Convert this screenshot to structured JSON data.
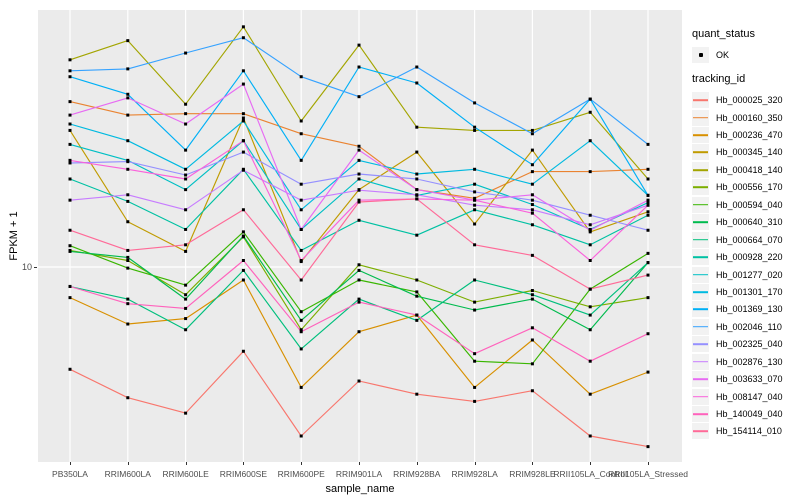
{
  "chart": {
    "y_tick_label": "10",
    "x_axis_title": "sample_name",
    "y_axis_title": "FPKM + 1"
  },
  "legend": {
    "quant_status_title": "quant_status",
    "quant_status_items": [
      {
        "label": "OK"
      }
    ],
    "tracking_id_title": "tracking_id"
  },
  "chart_data": {
    "type": "line",
    "title": "",
    "xlabel": "sample_name",
    "ylabel": "FPKM + 1",
    "y_scale": "log10",
    "y_ticks": [
      10
    ],
    "ylim_approx": [
      2,
      100
    ],
    "grid": "vertical-major-per-category-plus-y10",
    "panel_bg": "#EBEBEB",
    "grid_color": "#FFFFFF",
    "point_color": "#000000",
    "legend_position": "right",
    "categories": [
      "PB350LA",
      "RRIM600LA",
      "RRIM600LE",
      "RRIM600SE",
      "RRIM600PE",
      "RRIM901LA",
      "RRIM928BA",
      "RRIM928LA",
      "RRIM928LE",
      "RRII105LA_Control",
      "RRII105LA_Stressed"
    ],
    "quant_status": "OK",
    "series": [
      {
        "name": "Hb_000025_320",
        "color": "#F8766D",
        "values": [
          4.0,
          3.1,
          2.7,
          4.7,
          2.2,
          3.6,
          3.2,
          3.0,
          3.3,
          2.2,
          2.0
        ]
      },
      {
        "name": "Hb_000160_350",
        "color": "#EA8331",
        "values": [
          44,
          39,
          39.5,
          39.5,
          33,
          29.5,
          20,
          18.5,
          23.5,
          23.5,
          24
        ]
      },
      {
        "name": "Hb_000236_470",
        "color": "#D89000",
        "values": [
          7.6,
          6.0,
          6.3,
          8.9,
          3.4,
          5.6,
          6.5,
          3.4,
          5.2,
          3.2,
          3.9
        ]
      },
      {
        "name": "Hb_000345_140",
        "color": "#C09B00",
        "values": [
          34,
          15,
          11.5,
          38,
          10.5,
          20,
          28,
          14.7,
          28.5,
          13.7,
          16.4
        ]
      },
      {
        "name": "Hb_000418_140",
        "color": "#A3A500",
        "values": [
          64,
          76,
          43,
          86,
          37,
          73,
          35,
          34,
          34,
          40,
          22
        ]
      },
      {
        "name": "Hb_000556_170",
        "color": "#7CAE00",
        "values": [
          11.6,
          10.6,
          7.8,
          13.1,
          5.7,
          10.2,
          8.9,
          7.3,
          8.1,
          7.0,
          7.6
        ]
      },
      {
        "name": "Hb_000594_040",
        "color": "#39B600",
        "values": [
          12.1,
          9.9,
          8.5,
          13.7,
          6.7,
          8.9,
          8.0,
          4.3,
          4.2,
          8.2,
          11.3
        ]
      },
      {
        "name": "Hb_000640_310",
        "color": "#00BB4E",
        "values": [
          11.5,
          10.9,
          7.5,
          13.2,
          6.2,
          9.7,
          7.7,
          6.8,
          7.5,
          5.7,
          10.4
        ]
      },
      {
        "name": "Hb_000664_070",
        "color": "#00BF7D",
        "values": [
          8.4,
          7.5,
          5.7,
          9.7,
          4.8,
          7.5,
          6.2,
          8.9,
          7.8,
          6.5,
          10.4
        ]
      },
      {
        "name": "Hb_000928_220",
        "color": "#00C1A3",
        "values": [
          22,
          18,
          14,
          24,
          11.6,
          15.2,
          13.3,
          16.7,
          14.6,
          12.2,
          15.9
        ]
      },
      {
        "name": "Hb_001277_020",
        "color": "#00BFC4",
        "values": [
          30,
          26,
          20,
          31,
          14,
          22,
          19,
          21,
          17.5,
          14,
          17.8
        ]
      },
      {
        "name": "Hb_001301_170",
        "color": "#00BAE0",
        "values": [
          36,
          31,
          24,
          37,
          16.7,
          26,
          23,
          24,
          21,
          31,
          19
        ]
      },
      {
        "name": "Hb_001369_130",
        "color": "#00B0F6",
        "values": [
          55,
          47,
          28.5,
          58,
          26,
          60,
          52,
          35,
          25,
          45,
          19
        ]
      },
      {
        "name": "Hb_002046_110",
        "color": "#35A2FF",
        "values": [
          58,
          59,
          68,
          78,
          55,
          46,
          60,
          43.5,
          33,
          45,
          30
        ]
      },
      {
        "name": "Hb_002325_040",
        "color": "#9590FF",
        "values": [
          25.4,
          25.7,
          22.8,
          28,
          21,
          23,
          22,
          19.6,
          18.2,
          15.9,
          13.9
        ]
      },
      {
        "name": "Hb_002876_130",
        "color": "#C77CFF",
        "values": [
          18.2,
          19.1,
          16.7,
          23.8,
          18.2,
          19.9,
          19.1,
          17.4,
          16.7,
          14.6,
          17.4
        ]
      },
      {
        "name": "Hb_003633_070",
        "color": "#E76BF3",
        "values": [
          39,
          45.5,
          36,
          51.5,
          14,
          28.5,
          20,
          18.2,
          19.1,
          13.9,
          18.2
        ]
      },
      {
        "name": "Hb_008147_040",
        "color": "#FA62DB",
        "values": [
          26,
          24,
          22,
          31,
          10.6,
          18.2,
          18.4,
          18.2,
          16.2,
          10.6,
          17.4
        ]
      },
      {
        "name": "Hb_140049_040",
        "color": "#FF62BC",
        "values": [
          8.4,
          7.2,
          6.9,
          10.6,
          5.6,
          7.3,
          6.5,
          4.6,
          5.8,
          4.3,
          5.5
        ]
      },
      {
        "name": "Hb_154114_010",
        "color": "#FF6A98",
        "values": [
          13.9,
          11.6,
          12.2,
          16.7,
          8.9,
          17.9,
          18.4,
          12.2,
          11.1,
          8.2,
          9.3
        ]
      }
    ]
  }
}
